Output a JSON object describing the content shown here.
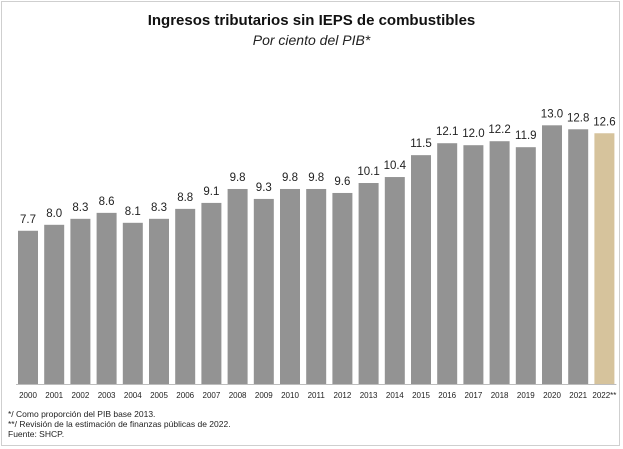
{
  "chart_data": {
    "type": "bar",
    "title": "Ingresos tributarios sin IEPS de combustibles",
    "subtitle": "Por ciento del PIB*",
    "xlabel": "",
    "ylabel": "",
    "ylim": [
      0,
      14
    ],
    "grid": false,
    "categories": [
      "2000",
      "2001",
      "2002",
      "2003",
      "2004",
      "2005",
      "2006",
      "2007",
      "2008",
      "2009",
      "2010",
      "2011",
      "2012",
      "2013",
      "2014",
      "2015",
      "2016",
      "2017",
      "2018",
      "2019",
      "2020",
      "2021",
      "2022**"
    ],
    "values": [
      7.7,
      8.0,
      8.3,
      8.6,
      8.1,
      8.3,
      8.8,
      9.1,
      9.8,
      9.3,
      9.8,
      9.8,
      9.6,
      10.1,
      10.4,
      11.5,
      12.1,
      12.0,
      12.2,
      11.9,
      13.0,
      12.8,
      12.6
    ],
    "value_labels": [
      "7.7",
      "8.0",
      "8.3",
      "8.6",
      "8.1",
      "8.3",
      "8.8",
      "9.1",
      "9.8",
      "9.3",
      "9.8",
      "9.8",
      "9.6",
      "10.1",
      "10.4",
      "11.5",
      "12.1",
      "12.0",
      "12.2",
      "11.9",
      "13.0",
      "12.8",
      "12.6"
    ],
    "colors": {
      "bar": "#939393",
      "highlight": "#d6c39c"
    },
    "highlight_index": 22
  },
  "notes": {
    "note1": "*/ Como proporción del PIB base 2013.",
    "note2": "**/ Revisión de la estimación de finanzas públicas de 2022.",
    "source": "Fuente: SHCP."
  }
}
